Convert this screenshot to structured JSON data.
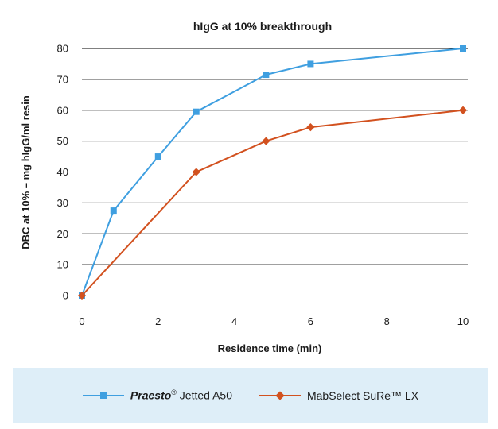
{
  "chart_data": {
    "type": "line",
    "title": "hIgG at 10% breakthrough",
    "xlabel": "Residence time (min)",
    "ylabel": "DBC at 10% – mg hIgG/ml resin",
    "xlim": [
      0,
      10
    ],
    "ylim": [
      0,
      80
    ],
    "xticks": [
      "0",
      "2",
      "4",
      "6",
      "8",
      "10"
    ],
    "yticks": [
      "0",
      "10",
      "20",
      "30",
      "40",
      "50",
      "60",
      "70",
      "80"
    ],
    "grid": "horizontal",
    "legend_position": "bottom",
    "series": [
      {
        "name": "Praesto® Jetted A50",
        "name_parts": {
          "brand": "Praesto",
          "mark": "®",
          "rest": " Jetted A50"
        },
        "color": "#3f9fe0",
        "marker": "square",
        "x": [
          0,
          0.83,
          2,
          3,
          4.83,
          6,
          10
        ],
        "y": [
          0,
          27.5,
          45,
          59.5,
          71.5,
          75,
          80
        ]
      },
      {
        "name": "MabSelect SuRe™ LX",
        "color": "#d2511f",
        "marker": "diamond",
        "x": [
          0,
          3,
          4.83,
          6,
          10
        ],
        "y": [
          0,
          40,
          50,
          54.5,
          60
        ]
      }
    ]
  }
}
